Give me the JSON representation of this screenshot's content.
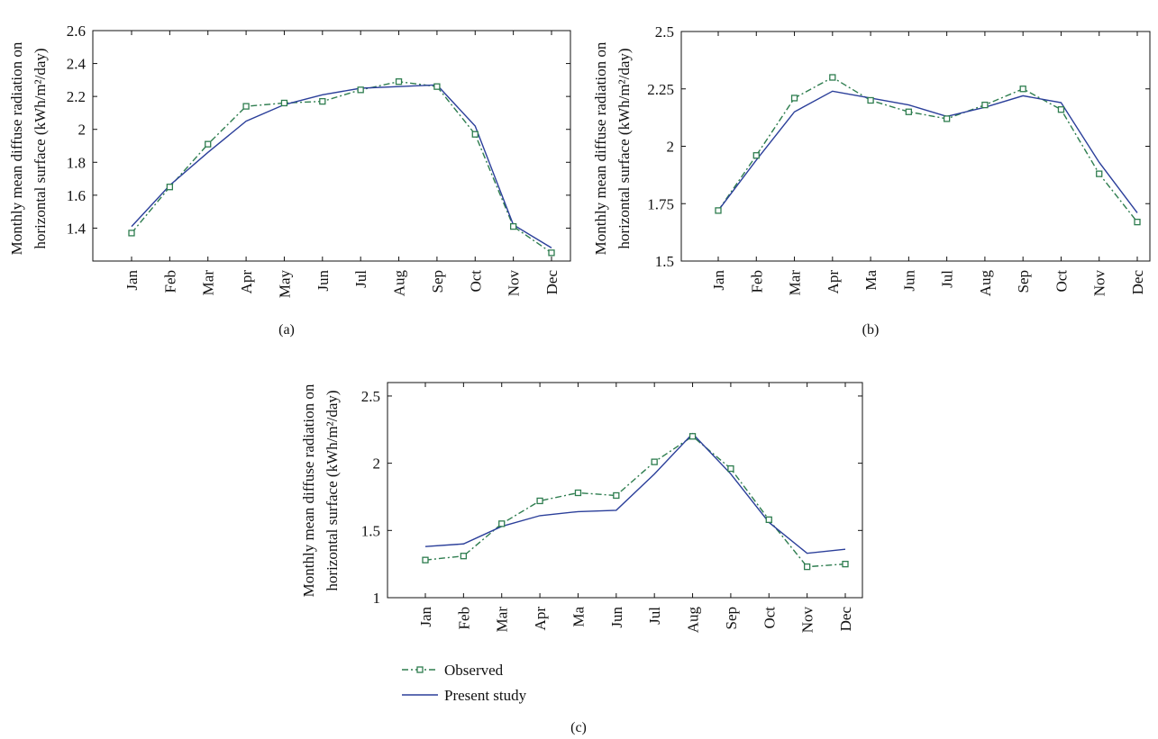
{
  "chart_data": [
    {
      "type": "line",
      "panel_label": "(a)",
      "ylabel_line1": "Monthly mean diffuse radiation on",
      "ylabel_line2": "horizontal surface (kWh/m²/day)",
      "categories": [
        "Jan",
        "Feb",
        "Mar",
        "Apr",
        "May",
        "Jun",
        "Jul",
        "Aug",
        "Sep",
        "Oct",
        "Nov",
        "Dec"
      ],
      "ylim": [
        1.2,
        2.6
      ],
      "yticks": [
        1.4,
        1.6,
        1.8,
        2,
        2.2,
        2.4,
        2.6
      ],
      "ytick_labels": [
        "1.4",
        "1.6",
        "1.8",
        "2",
        "2.2",
        "2.4",
        "2.6"
      ],
      "series": [
        {
          "name": "Observed",
          "values": [
            1.37,
            1.65,
            1.91,
            2.14,
            2.16,
            2.17,
            2.24,
            2.29,
            2.26,
            1.97,
            1.41,
            1.25
          ]
        },
        {
          "name": "Present study",
          "values": [
            1.41,
            1.66,
            1.86,
            2.05,
            2.15,
            2.21,
            2.25,
            2.26,
            2.27,
            2.02,
            1.42,
            1.28
          ]
        }
      ]
    },
    {
      "type": "line",
      "panel_label": "(b)",
      "ylabel_line1": "Monthly mean diffuse radiation on",
      "ylabel_line2": "horizontal surface (kWh/m²/day)",
      "categories": [
        "Jan",
        "Feb",
        "Mar",
        "Apr",
        "Ma",
        "Jun",
        "Jul",
        "Aug",
        "Sep",
        "Oct",
        "Nov",
        "Dec"
      ],
      "ylim": [
        1.5,
        2.5
      ],
      "yticks": [
        1.5,
        1.75,
        2,
        2.25,
        2.5
      ],
      "ytick_labels": [
        "1.5",
        "1.75",
        "2",
        "2.25",
        "2.5"
      ],
      "series": [
        {
          "name": "Observed",
          "values": [
            1.72,
            1.96,
            2.21,
            2.3,
            2.2,
            2.15,
            2.12,
            2.18,
            2.25,
            2.16,
            1.88,
            1.67
          ]
        },
        {
          "name": "Present study",
          "values": [
            1.72,
            1.94,
            2.15,
            2.24,
            2.21,
            2.18,
            2.13,
            2.17,
            2.22,
            2.19,
            1.93,
            1.71
          ]
        }
      ]
    },
    {
      "type": "line",
      "panel_label": "(c)",
      "ylabel_line1": "Monthly mean diffuse radiation on",
      "ylabel_line2": "horizontal surface (kWh/m²/day)",
      "categories": [
        "Jan",
        "Feb",
        "Mar",
        "Apr",
        "Ma",
        "Jun",
        "Jul",
        "Aug",
        "Sep",
        "Oct",
        "Nov",
        "Dec"
      ],
      "ylim": [
        1,
        2.6
      ],
      "yticks": [
        1,
        1.5,
        2,
        2.5
      ],
      "ytick_labels": [
        "1",
        "1.5",
        "2",
        "2.5"
      ],
      "series": [
        {
          "name": "Observed",
          "values": [
            1.28,
            1.31,
            1.55,
            1.72,
            1.78,
            1.76,
            2.01,
            2.2,
            1.96,
            1.58,
            1.23,
            1.25
          ]
        },
        {
          "name": "Present study",
          "values": [
            1.38,
            1.4,
            1.53,
            1.61,
            1.64,
            1.65,
            1.92,
            2.22,
            1.92,
            1.56,
            1.33,
            1.36
          ]
        }
      ],
      "legend_position": "bottom-left"
    }
  ],
  "legend": {
    "observed_label": "Observed",
    "present_label": "Present study"
  },
  "colors": {
    "observed": "#2e7d4f",
    "present": "#2b3f9a",
    "axis": "#111111"
  }
}
